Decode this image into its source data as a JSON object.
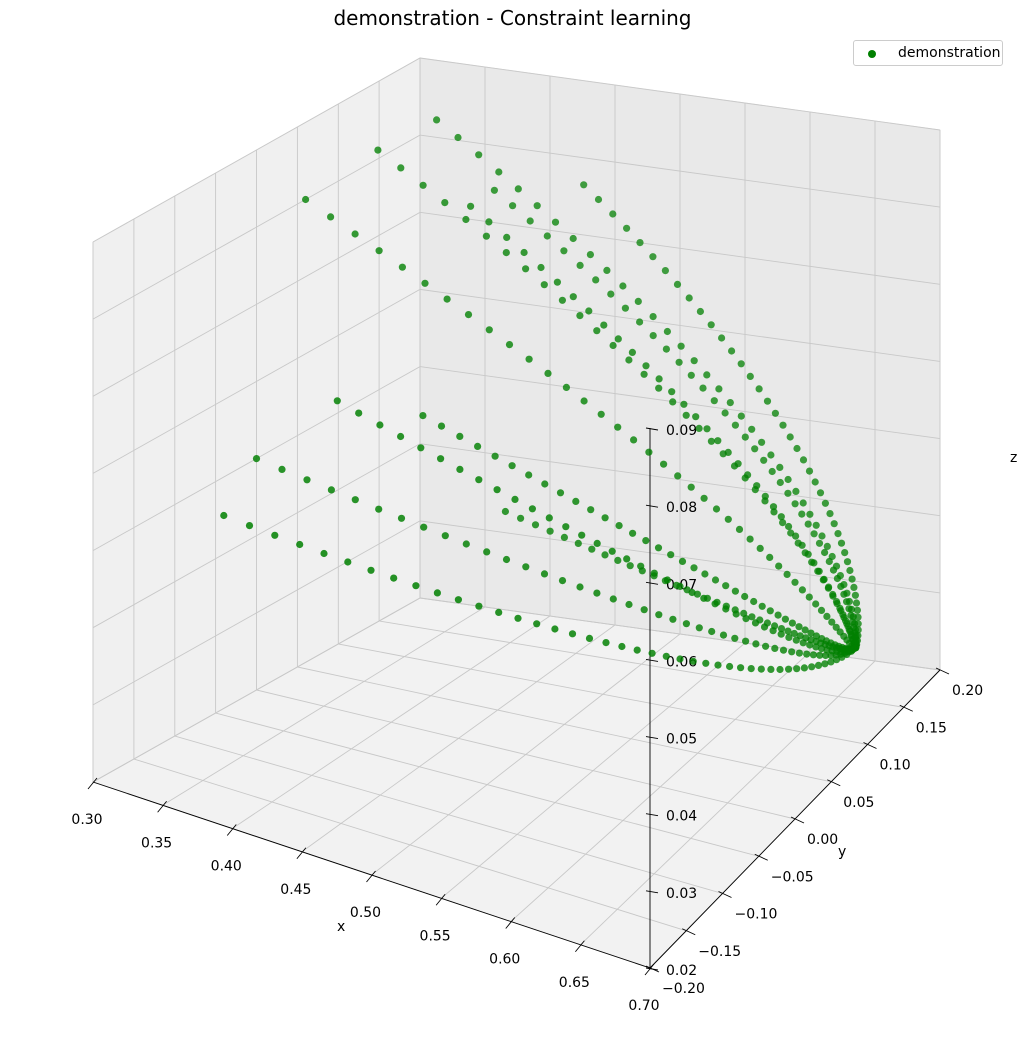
{
  "chart_data": {
    "type": "scatter",
    "title": "demonstration - Constraint learning",
    "xlabel": "x",
    "ylabel": "y",
    "zlabel": "z",
    "xlim": [
      0.3,
      0.7
    ],
    "ylim": [
      -0.2,
      0.2
    ],
    "zlim": [
      0.02,
      0.09
    ],
    "xticks": [
      "0.30",
      "0.35",
      "0.40",
      "0.45",
      "0.50",
      "0.55",
      "0.60",
      "0.65",
      "0.70"
    ],
    "yticks": [
      "−0.20",
      "−0.15",
      "−0.10",
      "−0.05",
      "0.00",
      "0.05",
      "0.10",
      "0.15",
      "0.20"
    ],
    "zticks": [
      "0.02",
      "0.03",
      "0.04",
      "0.05",
      "0.06",
      "0.07",
      "0.08",
      "0.09"
    ],
    "grid": true,
    "legend_position": "top-right",
    "series": [
      {
        "name": "demonstration",
        "color": "#008000",
        "trajectories": [
          {
            "start": [
              0.3,
              0.06,
              0.08
            ],
            "end": [
              0.68,
              0.12,
              0.03
            ]
          },
          {
            "start": [
              0.33,
              0.1,
              0.085
            ],
            "end": [
              0.68,
              0.12,
              0.03
            ]
          },
          {
            "start": [
              0.35,
              0.14,
              0.087
            ],
            "end": [
              0.68,
              0.12,
              0.03
            ]
          },
          {
            "start": [
              0.4,
              0.1,
              0.08
            ],
            "end": [
              0.68,
              0.12,
              0.03
            ]
          },
          {
            "start": [
              0.4,
              0.13,
              0.08
            ],
            "end": [
              0.68,
              0.12,
              0.03
            ]
          },
          {
            "start": [
              0.45,
              0.16,
              0.08
            ],
            "end": [
              0.68,
              0.12,
              0.03
            ]
          },
          {
            "start": [
              0.36,
              0.0,
              0.06
            ],
            "end": [
              0.68,
              0.12,
              0.03
            ]
          },
          {
            "start": [
              0.4,
              0.04,
              0.057
            ],
            "end": [
              0.68,
              0.12,
              0.03
            ]
          },
          {
            "start": [
              0.3,
              0.0,
              0.05
            ],
            "end": [
              0.68,
              0.12,
              0.03
            ]
          },
          {
            "start": [
              0.3,
              -0.04,
              0.045
            ],
            "end": [
              0.68,
              0.12,
              0.03
            ]
          },
          {
            "start": [
              0.45,
              0.06,
              0.045
            ],
            "end": [
              0.68,
              0.12,
              0.03
            ]
          }
        ]
      }
    ]
  }
}
